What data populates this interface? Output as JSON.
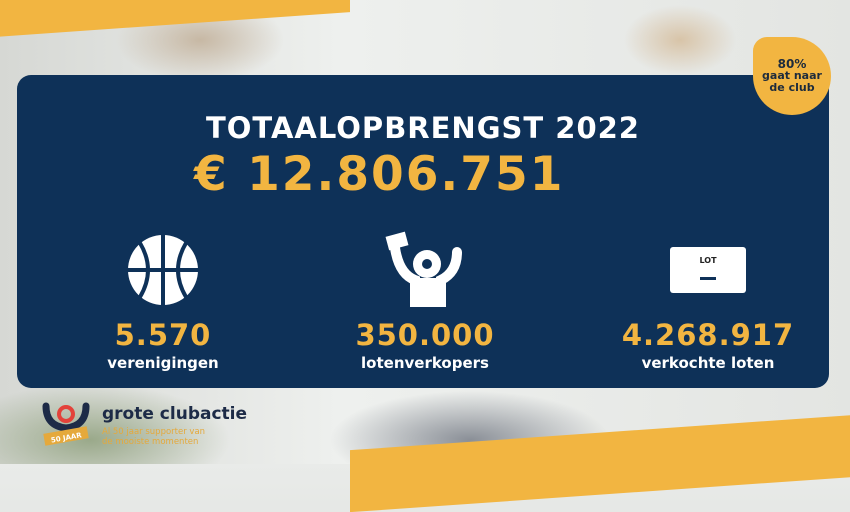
{
  "title": "TOTAALOPBRENGST 2022",
  "amount": "€ 12.806.751",
  "badge": {
    "line1": "80%",
    "line2": "gaat naar",
    "line3": "de club"
  },
  "stats": [
    {
      "icon": "basketball-icon",
      "value": "5.570",
      "label": "verenigingen"
    },
    {
      "icon": "cheering-supporter-icon",
      "value": "350.000",
      "label": "lotenverkopers"
    },
    {
      "icon": "lottery-ticket-icon",
      "value": "4.268.917",
      "label": "verkochte loten",
      "ticket_text": "LOT"
    }
  ],
  "logo": {
    "name": "grote clubactie",
    "anniversary": "50 JAAR",
    "tagline1": "Al 50 jaar supporter van",
    "tagline2": "de mooiste momenten"
  },
  "colors": {
    "navy": "#0e3158",
    "gold": "#f2b541"
  }
}
